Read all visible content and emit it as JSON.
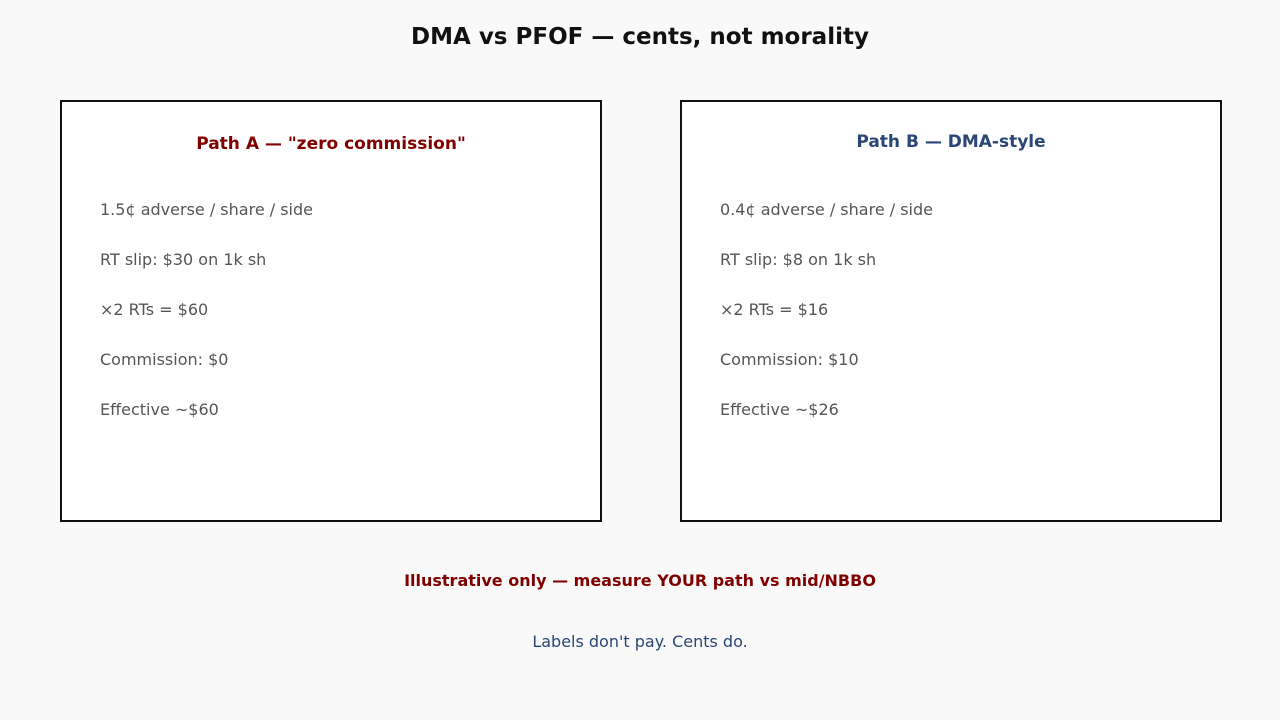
{
  "title": "DMA vs PFOF — cents, not morality",
  "colors": {
    "background": "#f9f9f9",
    "path_a_accent": "#800000",
    "path_b_accent": "#2a4674",
    "body_text": "#555555"
  },
  "path_a": {
    "title": "Path A — \"zero commission\"",
    "lines": [
      "1.5¢ adverse / share / side",
      "RT slip: $30 on 1k sh",
      "×2 RTs = $60",
      "Commission: $0",
      "Effective ~$60"
    ]
  },
  "path_b": {
    "title": "Path B — DMA-style",
    "lines": [
      "0.4¢ adverse / share / side",
      "RT slip: $8 on 1k sh",
      "×2 RTs = $16",
      "Commission: $10",
      "Effective ~$26"
    ]
  },
  "footer": {
    "note": "Illustrative only — measure YOUR path vs mid/NBBO",
    "tagline": "Labels don't pay. Cents do."
  }
}
